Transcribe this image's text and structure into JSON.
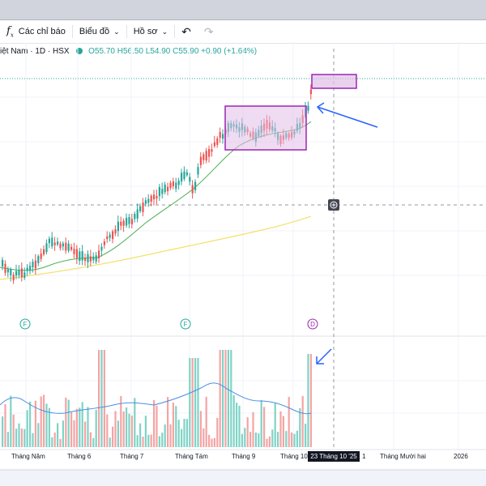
{
  "toolbar": {
    "indicators_label": "Các chỉ báo",
    "chart_menu_label": "Biểu đồ",
    "profile_menu_label": "Hồ sơ",
    "undo_icon": "undo-icon",
    "redo_icon": "redo-icon"
  },
  "legend": {
    "symbol": "iệt Nam · 1D · HSX",
    "open": "O55.70",
    "high": "H56.50",
    "low": "L54.90",
    "close": "C55.90",
    "change": "+0.90 (+1.64%)"
  },
  "event_markers": [
    "F",
    "F",
    "D"
  ],
  "x_axis": {
    "labels": [
      "Tháng Năm",
      "Tháng 6",
      "Tháng 7",
      "Tháng Tám",
      "Tháng 9",
      "Tháng 10",
      "1",
      "Tháng Mười hai",
      "2026"
    ],
    "crosshair_date": "23 Tháng 10 '25"
  },
  "colors": {
    "up": "#26a69a",
    "down": "#ef5350",
    "volume_up": "#7fd3c6",
    "volume_down": "#f5a4a4",
    "ma_short": "#4caf50",
    "ma_long": "#f5e06b",
    "volume_ma": "#4a90e2",
    "annotation": "#9c27b0",
    "arrow": "#2962ff"
  }
}
